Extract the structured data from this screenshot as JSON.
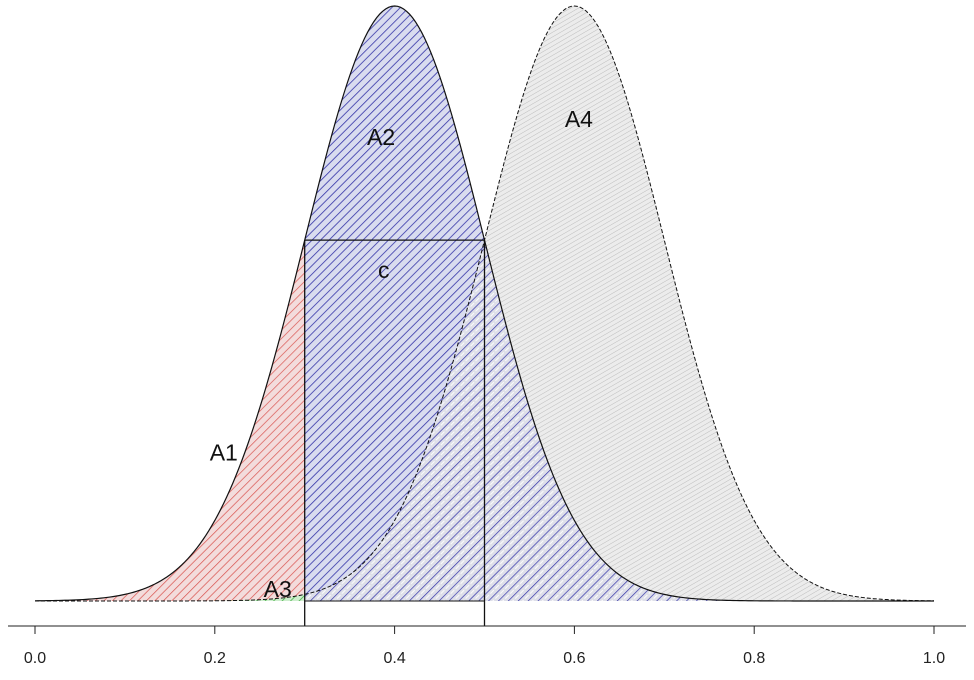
{
  "chart_data": {
    "type": "area",
    "title": "",
    "xlabel": "",
    "ylabel": "",
    "xlim": [
      0.0,
      1.0
    ],
    "x_ticks": [
      0.0,
      0.2,
      0.4,
      0.6,
      0.8,
      1.0
    ],
    "x_tick_labels": [
      "0.0",
      "0.2",
      "0.4",
      "0.6",
      "0.8",
      "1.0"
    ],
    "y_axis_shown": false,
    "grid": false,
    "legend": "none",
    "series": [
      {
        "mean": 0.4,
        "sd": 0.1,
        "fill": "hatched blue"
      },
      {
        "mean": 0.6,
        "sd": 0.1,
        "fill": "light gray"
      }
    ],
    "thresholds": [
      0.3,
      0.5
    ],
    "box": {
      "x0": 0.3,
      "x1": 0.5,
      "label": "c"
    },
    "regions": [
      {
        "label": "A1",
        "x_range": [
          0.0,
          0.3
        ],
        "color": "#d9534f",
        "label_x": 0.21,
        "label_y": 0.25
      },
      {
        "label": "A2",
        "x_range": [
          0.3,
          0.5
        ],
        "color": "#3535a8",
        "label_x": 0.385,
        "label_y": 0.78
      },
      {
        "label": "A3",
        "x_range": [
          0.0,
          0.3
        ],
        "color": "#4cc24c",
        "label_x": 0.27,
        "label_y": 0.02
      },
      {
        "label": "A4",
        "x_range": [
          0.5,
          1.0
        ],
        "color": "#c4c4c4",
        "label_x": 0.605,
        "label_y": 0.81
      }
    ]
  }
}
